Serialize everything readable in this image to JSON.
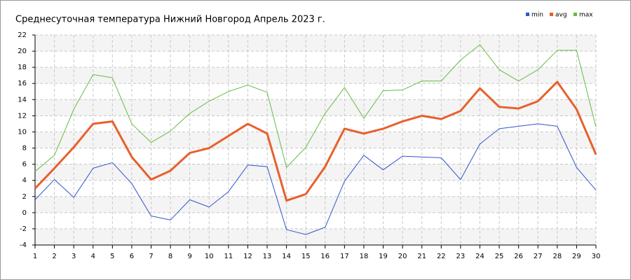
{
  "chart_data": {
    "type": "line",
    "title": "Среднесуточная температура Нижний Новгород  Апрель 2023 г.",
    "x": [
      1,
      2,
      3,
      4,
      5,
      6,
      7,
      8,
      9,
      10,
      11,
      12,
      13,
      14,
      15,
      16,
      17,
      18,
      19,
      20,
      21,
      22,
      23,
      24,
      25,
      26,
      27,
      28,
      29,
      30
    ],
    "xlim": [
      1,
      30
    ],
    "xticks": [
      1,
      2,
      3,
      4,
      5,
      6,
      7,
      8,
      9,
      10,
      11,
      12,
      13,
      14,
      15,
      16,
      17,
      18,
      19,
      20,
      21,
      22,
      23,
      24,
      25,
      26,
      27,
      28,
      29,
      30
    ],
    "ylim": [
      -4,
      22
    ],
    "yticks": [
      -4,
      -2,
      0,
      2,
      4,
      6,
      8,
      10,
      12,
      14,
      16,
      18,
      20,
      22
    ],
    "grid": true,
    "legend": "top-right",
    "series": [
      {
        "name": "min",
        "color": "#3355cc",
        "values": [
          1.6,
          4.1,
          1.9,
          5.5,
          6.2,
          3.6,
          -0.4,
          -0.9,
          1.6,
          0.7,
          2.6,
          5.9,
          5.7,
          -2.1,
          -2.7,
          -1.8,
          3.9,
          7.1,
          5.3,
          7.0,
          6.9,
          6.8,
          4.1,
          8.5,
          10.4,
          10.7,
          11.0,
          10.7,
          5.6,
          2.8
        ]
      },
      {
        "name": "avg",
        "color": "#e8602c",
        "values": [
          3.0,
          5.5,
          8.1,
          11.0,
          11.3,
          6.9,
          4.1,
          5.2,
          7.4,
          8.0,
          9.5,
          11.0,
          9.8,
          1.5,
          2.3,
          5.7,
          10.4,
          9.8,
          10.4,
          11.3,
          12.0,
          11.6,
          12.6,
          15.4,
          13.1,
          12.9,
          13.8,
          16.2,
          12.8,
          7.2
        ]
      },
      {
        "name": "max",
        "color": "#66bb44",
        "values": [
          5.1,
          7.1,
          12.8,
          17.1,
          16.7,
          11.0,
          8.7,
          10.1,
          12.3,
          13.8,
          15.0,
          15.8,
          14.9,
          5.6,
          8.1,
          12.3,
          15.5,
          11.7,
          15.1,
          15.2,
          16.3,
          16.3,
          18.9,
          20.8,
          17.7,
          16.3,
          17.7,
          20.1,
          20.1,
          10.6
        ]
      }
    ]
  }
}
